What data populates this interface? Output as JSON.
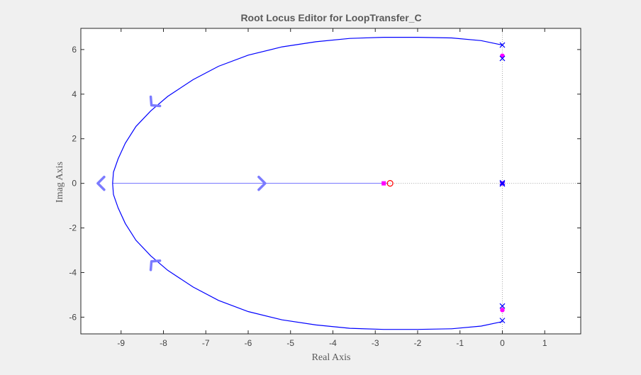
{
  "chart_data": {
    "type": "line",
    "title": "Root Locus Editor for LoopTransfer_C",
    "xlabel": "Real Axis",
    "ylabel": "Imag Axis",
    "xlim": [
      -9.95,
      1.85
    ],
    "ylim": [
      -6.75,
      6.95
    ],
    "xticks": [
      -9,
      -8,
      -7,
      -6,
      -5,
      -4,
      -3,
      -2,
      -1,
      0,
      1
    ],
    "yticks": [
      -6,
      -4,
      -2,
      0,
      2,
      4,
      6
    ],
    "grid": false,
    "colors": {
      "locus": "#0000ff",
      "arrow": "#7b7bff",
      "closed_loop": "#ff00ff",
      "zero": "#ff0000",
      "guide": "#aaaaaa"
    },
    "series": [
      {
        "kind": "locus-upper",
        "x": [
          0,
          -0.5,
          -1.2,
          -2,
          -2.8,
          -3.6,
          -4.4,
          -5.2,
          -6,
          -6.7,
          -7.3,
          -7.9,
          -8.3,
          -8.65,
          -8.9,
          -9.07,
          -9.18,
          -9.2
        ],
        "y": [
          6.2,
          6.4,
          6.52,
          6.55,
          6.55,
          6.5,
          6.35,
          6.12,
          5.75,
          5.25,
          4.65,
          3.9,
          3.25,
          2.55,
          1.8,
          1.1,
          0.5,
          0
        ]
      },
      {
        "kind": "locus-lower",
        "x": [
          0,
          -0.5,
          -1.2,
          -2,
          -2.8,
          -3.6,
          -4.4,
          -5.2,
          -6,
          -6.7,
          -7.3,
          -7.9,
          -8.3,
          -8.65,
          -8.9,
          -9.07,
          -9.18,
          -9.2
        ],
        "y": [
          -6.2,
          -6.4,
          -6.52,
          -6.55,
          -6.55,
          -6.5,
          -6.35,
          -6.12,
          -5.75,
          -5.25,
          -4.65,
          -3.9,
          -3.25,
          -2.55,
          -1.8,
          -1.1,
          -0.5,
          0
        ]
      },
      {
        "kind": "locus-real",
        "x": [
          -9.2,
          -2.7
        ],
        "y": [
          0,
          0
        ]
      }
    ],
    "poles": [
      {
        "x": 0,
        "y": 6.2
      },
      {
        "x": 0,
        "y": 5.6
      },
      {
        "x": 0,
        "y": -5.5
      },
      {
        "x": 0,
        "y": -6.15
      },
      {
        "x": 0,
        "y": 0.03
      },
      {
        "x": 0,
        "y": -0.03
      }
    ],
    "zeros": [
      {
        "x": -2.65,
        "y": 0
      }
    ],
    "closed_loop_poles": [
      {
        "x": 0,
        "y": 5.72,
        "shape": "circle"
      },
      {
        "x": 0,
        "y": -5.68,
        "shape": "circle"
      },
      {
        "x": 0,
        "y": 0,
        "shape": "square"
      },
      {
        "x": -2.8,
        "y": 0,
        "shape": "square"
      }
    ],
    "arrows": [
      {
        "x": -8.3,
        "y": 3.5,
        "dir": "up-left"
      },
      {
        "x": -8.3,
        "y": -3.5,
        "dir": "down-left"
      },
      {
        "x": -9.55,
        "y": 0,
        "dir": "left"
      },
      {
        "x": -5.6,
        "y": 0,
        "dir": "right"
      }
    ],
    "guide_lines": [
      {
        "axis": "x",
        "value": 0
      },
      {
        "axis": "y",
        "value": 0
      }
    ]
  }
}
